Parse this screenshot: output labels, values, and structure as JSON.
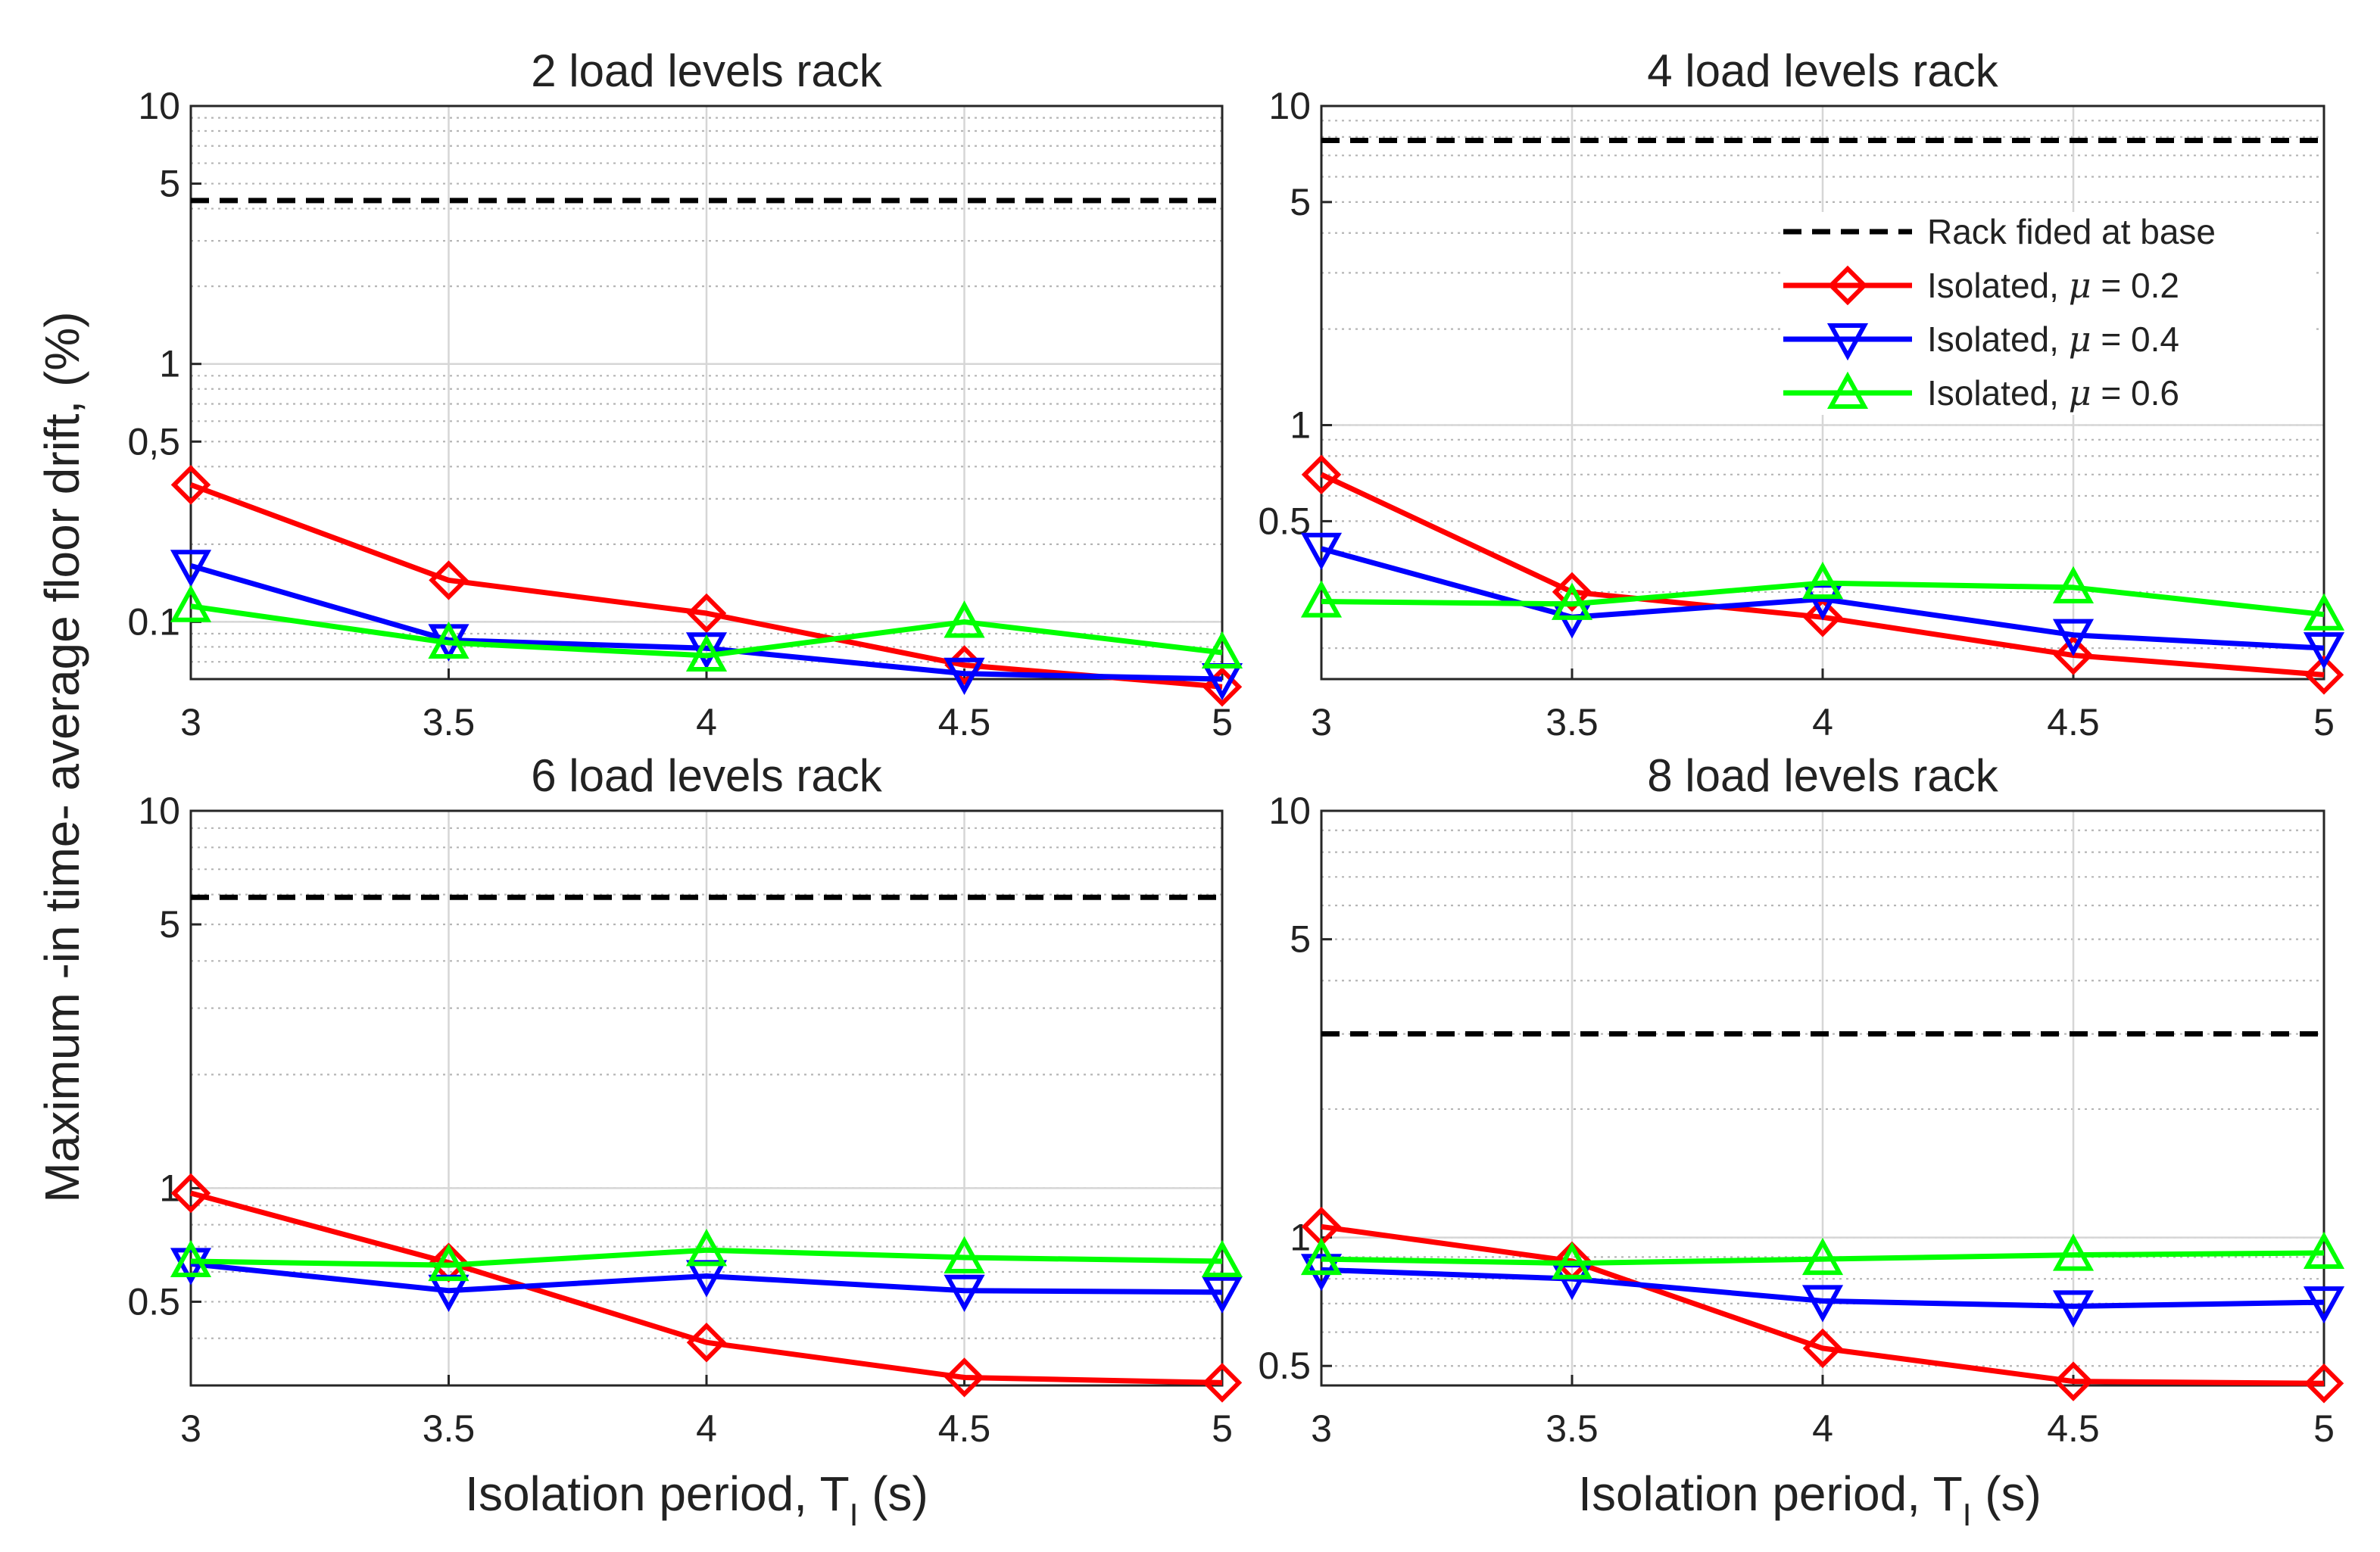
{
  "figure": {
    "ylabel": "Maximum -in time- average floor drift, (%)",
    "xlabel_main": "Isolation period, T",
    "xlabel_sub": "I",
    "xlabel_tail": " (s)"
  },
  "legend": [
    {
      "label": "Rack fided at base",
      "color": "#000000",
      "marker": "none",
      "dash": true
    },
    {
      "label_pre": "Isolated, ",
      "label_mu": "μ",
      "label_post": " = 0.2",
      "color": "#ff0000",
      "marker": "diamond"
    },
    {
      "label_pre": "Isolated, ",
      "label_mu": "μ",
      "label_post": " = 0.4",
      "color": "#0000ff",
      "marker": "triangle-down"
    },
    {
      "label_pre": "Isolated, ",
      "label_mu": "μ",
      "label_post": " = 0.6",
      "color": "#00ff00",
      "marker": "triangle-up"
    }
  ],
  "chart_data": [
    {
      "type": "line",
      "title": "2 load levels rack",
      "yscale": "log",
      "ylim": [
        0.06,
        10
      ],
      "xlim": [
        3,
        5
      ],
      "x": [
        3,
        3.5,
        4,
        4.5,
        5
      ],
      "xticklabels": [
        "3",
        "3.5",
        "4",
        "4.5",
        "5"
      ],
      "yticks": [
        0.1,
        0.5,
        1,
        5,
        10
      ],
      "yticklabels": [
        "0.1",
        "0,5",
        "1",
        "5",
        "10"
      ],
      "fixed_base": 4.3,
      "series": [
        {
          "name": "Isolated, μ = 0.2",
          "color": "#ff0000",
          "marker": "diamond",
          "values": [
            0.34,
            0.145,
            0.108,
            0.068,
            0.056
          ]
        },
        {
          "name": "Isolated, μ = 0.4",
          "color": "#0000ff",
          "marker": "triangle-down",
          "values": [
            0.165,
            0.085,
            0.079,
            0.063,
            0.06
          ]
        },
        {
          "name": "Isolated, μ = 0.6",
          "color": "#00ff00",
          "marker": "triangle-up",
          "values": [
            0.115,
            0.083,
            0.074,
            0.1,
            0.076
          ]
        }
      ]
    },
    {
      "type": "line",
      "title": "4 load levels rack",
      "yscale": "log",
      "ylim": [
        0.16,
        10
      ],
      "xlim": [
        3,
        5
      ],
      "x": [
        3,
        3.5,
        4,
        4.5,
        5
      ],
      "xticklabels": [
        "3",
        "3.5",
        "4",
        "4.5",
        "5"
      ],
      "yticks": [
        0.5,
        1,
        5,
        10
      ],
      "yticklabels": [
        "0.5",
        "1",
        "5",
        "10"
      ],
      "fixed_base": 7.8,
      "series": [
        {
          "name": "Isolated, μ = 0.2",
          "color": "#ff0000",
          "marker": "diamond",
          "values": [
            0.7,
            0.3,
            0.25,
            0.19,
            0.165
          ]
        },
        {
          "name": "Isolated, μ = 0.4",
          "color": "#0000ff",
          "marker": "triangle-down",
          "values": [
            0.41,
            0.25,
            0.285,
            0.22,
            0.2
          ]
        },
        {
          "name": "Isolated, μ = 0.6",
          "color": "#00ff00",
          "marker": "triangle-up",
          "values": [
            0.28,
            0.275,
            0.32,
            0.31,
            0.255
          ]
        }
      ]
    },
    {
      "type": "line",
      "title": "6 load levels rack",
      "yscale": "log",
      "ylim": [
        0.3,
        10
      ],
      "xlim": [
        3,
        5
      ],
      "x": [
        3,
        3.5,
        4,
        4.5,
        5
      ],
      "xticklabels": [
        "3",
        "3.5",
        "4",
        "4.5",
        "5"
      ],
      "yticks": [
        0.5,
        1,
        5,
        10
      ],
      "yticklabels": [
        "0.5",
        "1",
        "5",
        "10"
      ],
      "fixed_base": 5.9,
      "series": [
        {
          "name": "Isolated, μ = 0.2",
          "color": "#ff0000",
          "marker": "diamond",
          "values": [
            0.97,
            0.635,
            0.39,
            0.315,
            0.305
          ]
        },
        {
          "name": "Isolated, μ = 0.4",
          "color": "#0000ff",
          "marker": "triangle-down",
          "values": [
            0.63,
            0.535,
            0.585,
            0.535,
            0.53
          ]
        },
        {
          "name": "Isolated, μ = 0.6",
          "color": "#00ff00",
          "marker": "triangle-up",
          "values": [
            0.64,
            0.625,
            0.685,
            0.655,
            0.64
          ]
        }
      ]
    },
    {
      "type": "line",
      "title": "8 load levels rack",
      "yscale": "log",
      "ylim": [
        0.45,
        10
      ],
      "xlim": [
        3,
        5
      ],
      "x": [
        3,
        3.5,
        4,
        4.5,
        5
      ],
      "xticklabels": [
        "3",
        "3.5",
        "4",
        "4.5",
        "5"
      ],
      "yticks": [
        0.5,
        1,
        5,
        10
      ],
      "yticklabels": [
        "0.5",
        "1",
        "5",
        "10"
      ],
      "fixed_base": 3.0,
      "series": [
        {
          "name": "Isolated, μ = 0.2",
          "color": "#ff0000",
          "marker": "diamond",
          "values": [
            1.06,
            0.88,
            0.55,
            0.46,
            0.455
          ]
        },
        {
          "name": "Isolated, μ = 0.4",
          "color": "#0000ff",
          "marker": "triangle-down",
          "values": [
            0.84,
            0.8,
            0.71,
            0.69,
            0.705
          ]
        },
        {
          "name": "Isolated, μ = 0.6",
          "color": "#00ff00",
          "marker": "triangle-up",
          "values": [
            0.89,
            0.87,
            0.89,
            0.91,
            0.92
          ]
        }
      ]
    }
  ]
}
